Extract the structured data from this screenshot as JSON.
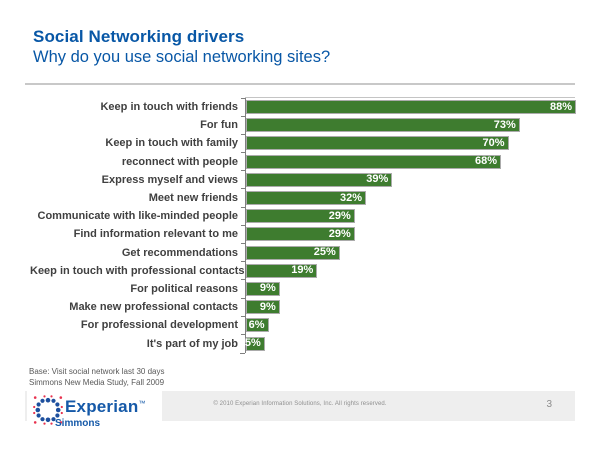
{
  "header": {
    "title": "Social Networking drivers",
    "subtitle": "Why do you use social networking sites?"
  },
  "chart_data": {
    "type": "bar",
    "orientation": "horizontal",
    "title": "Why do you use social networking sites?",
    "categories": [
      "Keep in touch with friends",
      "For fun",
      "Keep in touch with family",
      "reconnect with people",
      "Express myself and views",
      "Meet new friends",
      "Communicate with like-minded people",
      "Find information relevant to me",
      "Get recommendations",
      "Keep in touch with professional contacts",
      "For political reasons",
      "Make new professional contacts",
      "For professional development",
      "It's part of my job"
    ],
    "values": [
      88,
      73,
      70,
      68,
      39,
      32,
      29,
      29,
      25,
      19,
      9,
      9,
      6,
      5
    ],
    "unit": "%",
    "xlim": [
      0,
      88
    ],
    "bar_color": "#3e7c2f",
    "value_label_color": "#ffffff",
    "grid": false,
    "legend": false,
    "value_labels_inside_bars": true
  },
  "footnote": {
    "line1": "Base: Visit social network last 30 days",
    "line2": "Simmons New Media Study, Fall 2009"
  },
  "footer": {
    "copyright": "© 2010 Experian Information Solutions, Inc.  All rights reserved.",
    "page_number": "3",
    "logo": {
      "brand": "Experian",
      "trademark": "™",
      "sub_brand": "Simmons",
      "dot_blue": "#1d4f9e",
      "dot_red": "#e8324f"
    }
  }
}
